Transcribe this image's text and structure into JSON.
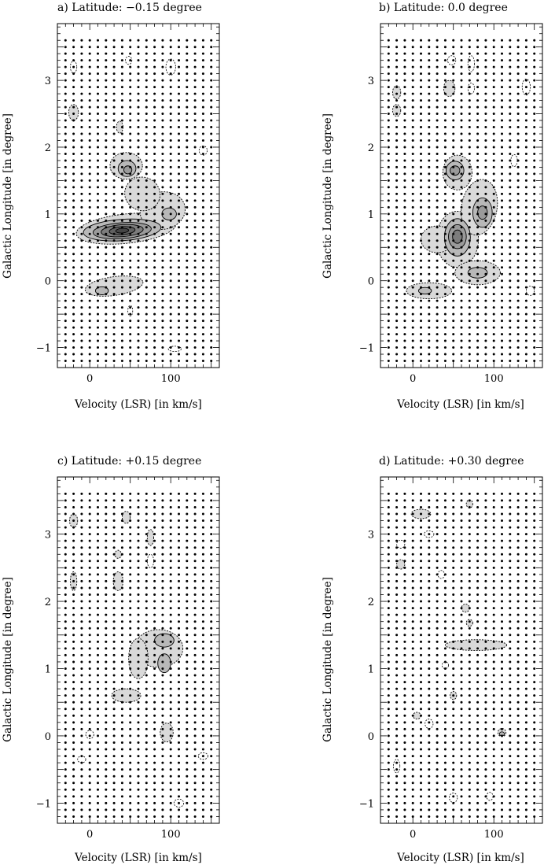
{
  "figure": {
    "panels": [
      {
        "id": "a",
        "title": "a) Latitude: −0.15 degree"
      },
      {
        "id": "b",
        "title": "b) Latitude: 0.0 degree"
      },
      {
        "id": "c",
        "title": "c) Latitude: +0.15 degree"
      },
      {
        "id": "d",
        "title": "d) Latitude: +0.30 degree"
      }
    ]
  },
  "chart_data": [
    {
      "type": "contour",
      "title": "a) Latitude: −0.15 degree",
      "xlabel": "Velocity (LSR) [in km/s]",
      "ylabel": "Galactic Longitude [in degree]",
      "xlim": [
        -40,
        160
      ],
      "ylim": [
        -1.3,
        3.85
      ],
      "xticks": [
        0,
        100
      ],
      "yticks": [
        -1,
        0,
        1,
        2,
        3
      ],
      "grid": "dots",
      "features": [
        {
          "v": 40,
          "l": 0.75,
          "peak_level": 6
        },
        {
          "v": 45,
          "l": 1.7,
          "peak_level": 3
        },
        {
          "v": 95,
          "l": 1.0,
          "peak_level": 2
        },
        {
          "v": 15,
          "l": -0.15,
          "peak_level": 2
        },
        {
          "v": 45,
          "l": -0.05,
          "peak_level": 1
        },
        {
          "v": -20,
          "l": 2.5,
          "peak_level": 1
        },
        {
          "v": 35,
          "l": 2.3,
          "peak_level": 1
        }
      ]
    },
    {
      "type": "contour",
      "title": "b) Latitude: 0.0 degree",
      "xlabel": "Velocity (LSR) [in km/s]",
      "ylabel": "Galactic Longitude [in degree]",
      "xlim": [
        -40,
        160
      ],
      "ylim": [
        -1.3,
        3.85
      ],
      "xticks": [
        0,
        100
      ],
      "yticks": [
        -1,
        0,
        1,
        2,
        3
      ],
      "grid": "dots",
      "features": [
        {
          "v": 50,
          "l": 1.65,
          "peak_level": 5
        },
        {
          "v": 55,
          "l": 0.65,
          "peak_level": 6
        },
        {
          "v": 85,
          "l": 1.0,
          "peak_level": 4
        },
        {
          "v": 15,
          "l": -0.15,
          "peak_level": 2
        },
        {
          "v": 75,
          "l": 0.1,
          "peak_level": 2
        },
        {
          "v": -20,
          "l": 2.8,
          "peak_level": 1
        },
        {
          "v": 45,
          "l": 2.9,
          "peak_level": 1
        }
      ]
    },
    {
      "type": "contour",
      "title": "c) Latitude: +0.15 degree",
      "xlabel": "Velocity (LSR) [in km/s]",
      "ylabel": "Galactic Longitude [in degree]",
      "xlim": [
        -40,
        160
      ],
      "ylim": [
        -1.3,
        3.85
      ],
      "xticks": [
        0,
        100
      ],
      "yticks": [
        -1,
        0,
        1,
        2,
        3
      ],
      "grid": "dots",
      "features": [
        {
          "v": 85,
          "l": 1.35,
          "peak_level": 2
        },
        {
          "v": 45,
          "l": 0.6,
          "peak_level": 2
        },
        {
          "v": 95,
          "l": 0.05,
          "peak_level": 2
        },
        {
          "v": 35,
          "l": 2.3,
          "peak_level": 1
        },
        {
          "v": -20,
          "l": 2.3,
          "peak_level": 1
        },
        {
          "v": 75,
          "l": 2.95,
          "peak_level": 1
        }
      ]
    },
    {
      "type": "contour",
      "title": "d) Latitude: +0.30 degree",
      "xlabel": "Velocity (LSR) [in km/s]",
      "ylabel": "Galactic Longitude [in degree]",
      "xlim": [
        -40,
        160
      ],
      "ylim": [
        -1.3,
        3.85
      ],
      "xticks": [
        0,
        100
      ],
      "yticks": [
        -1,
        0,
        1,
        2,
        3
      ],
      "grid": "dots",
      "features": [
        {
          "v": 80,
          "l": 1.35,
          "peak_level": 2
        },
        {
          "v": 10,
          "l": 3.3,
          "peak_level": 2
        },
        {
          "v": 5,
          "l": 0.3,
          "peak_level": 1
        },
        {
          "v": 50,
          "l": 0.6,
          "peak_level": 1
        },
        {
          "v": 110,
          "l": 0.05,
          "peak_level": 2
        },
        {
          "v": -15,
          "l": 2.55,
          "peak_level": 1
        },
        {
          "v": 70,
          "l": 3.45,
          "peak_level": 1
        }
      ]
    }
  ]
}
